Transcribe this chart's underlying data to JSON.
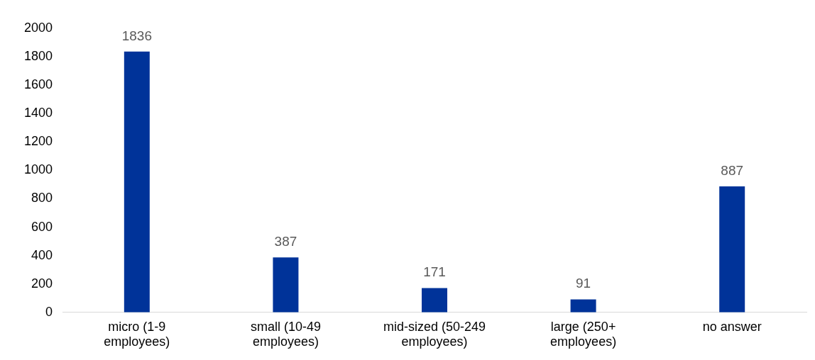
{
  "chart_data": {
    "type": "bar",
    "categories": [
      "micro (1-9 employees)",
      "small (10-49 employees)",
      "mid-sized (50-249 employees)",
      "large (250+ employees)",
      "no answer"
    ],
    "values": [
      1836,
      387,
      171,
      91,
      887
    ],
    "color": "#003399",
    "ylim": [
      0,
      2000
    ],
    "yticks": [
      0,
      200,
      400,
      600,
      800,
      1000,
      1200,
      1400,
      1600,
      1800,
      2000
    ],
    "grid": false,
    "data_labels": true
  }
}
